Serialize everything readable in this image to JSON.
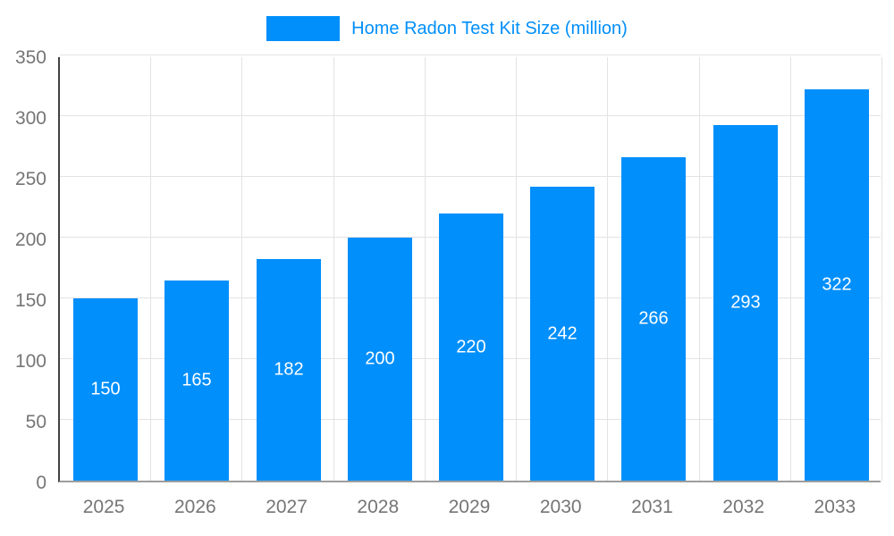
{
  "chart_data": {
    "type": "bar",
    "title": "Home Radon Test Kit Size (million)",
    "categories": [
      "2025",
      "2026",
      "2027",
      "2028",
      "2029",
      "2030",
      "2031",
      "2032",
      "2033"
    ],
    "values": [
      150,
      165,
      182,
      200,
      220,
      242,
      266,
      293,
      322
    ],
    "xlabel": "",
    "ylabel": "",
    "ylim": [
      0,
      350
    ],
    "ytick_step": 50,
    "ytick_labels": [
      "0",
      "50",
      "100",
      "150",
      "200",
      "250",
      "300",
      "350"
    ],
    "grid": true,
    "legend_position": "top",
    "bar_color": "#008FFB",
    "title_color": "#008FFB",
    "axis_text_color": "#757575",
    "gridline_color": "#e3e3e3",
    "value_label_color": "#ffffff"
  },
  "legend": {
    "label": "Home Radon Test Kit Size (million)"
  }
}
